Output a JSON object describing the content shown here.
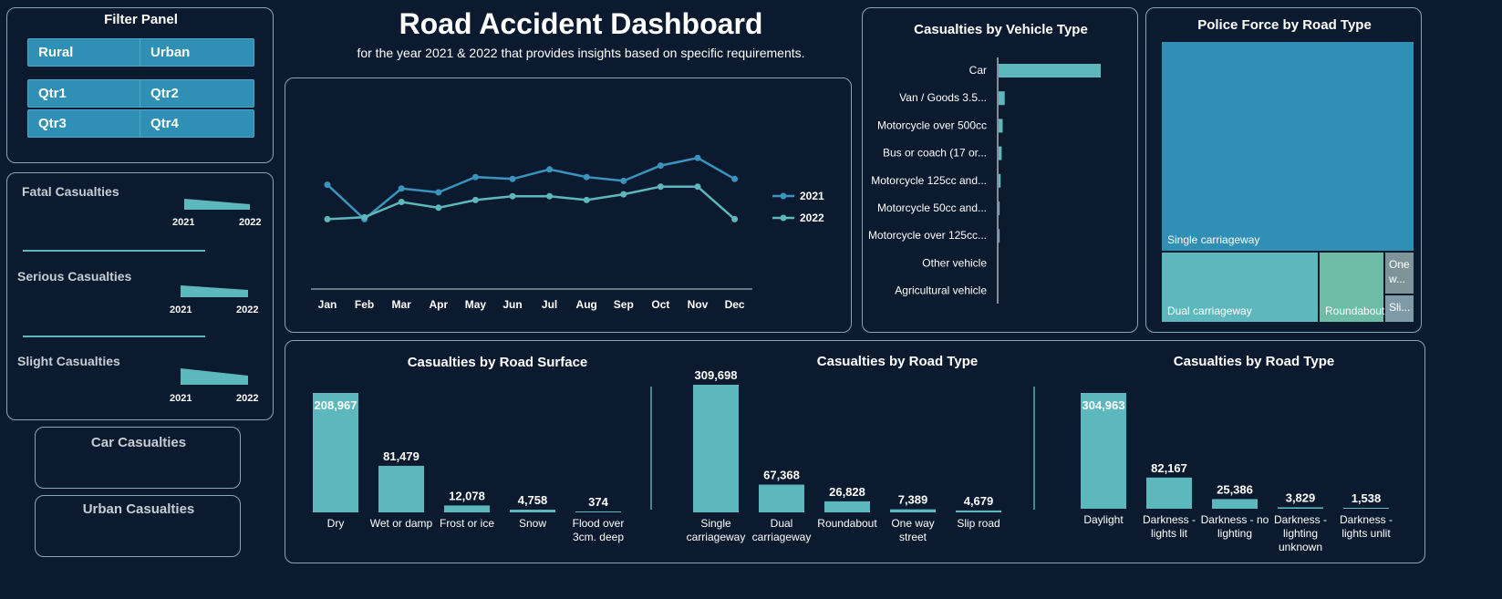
{
  "header": {
    "title": "Road Accident Dashboard",
    "subtitle": "for the year 2021 & 2022 that provides insights based on specific requirements."
  },
  "filter_panel": {
    "title": "Filter Panel",
    "area_buttons": [
      "Rural",
      "Urban"
    ],
    "quarter_buttons": [
      "Qtr1",
      "Qtr2",
      "Qtr3",
      "Qtr4"
    ]
  },
  "kpis": [
    {
      "label": "Fatal Casualties",
      "years": [
        "2021",
        "2022"
      ]
    },
    {
      "label": "Serious Casualties",
      "years": [
        "2021",
        "2022"
      ]
    },
    {
      "label": "Slight Casualties",
      "years": [
        "2021",
        "2022"
      ]
    }
  ],
  "cards": {
    "car": "Car Casualties",
    "urban": "Urban Casualties"
  },
  "colors": {
    "background": "#0b1a2e",
    "accent_teal": "#5cb8bc",
    "accent_blue": "#3a94bd",
    "slicer_blue": "#2f8fb5",
    "treemap_green": "#6dbca3",
    "treemap_grey": "#7f9498"
  },
  "chart_data": [
    {
      "type": "line",
      "id": "monthly_trend",
      "title": "",
      "categories": [
        "Jan",
        "Feb",
        "Mar",
        "Apr",
        "May",
        "Jun",
        "Jul",
        "Aug",
        "Sep",
        "Oct",
        "Nov",
        "Dec"
      ],
      "series": [
        {
          "name": "2021",
          "color": "#3a94bd",
          "values": [
            54,
            36,
            52,
            50,
            58,
            57,
            62,
            58,
            56,
            64,
            68,
            57
          ]
        },
        {
          "name": "2022",
          "color": "#5cb8bc",
          "values": [
            36,
            37,
            45,
            42,
            46,
            48,
            48,
            46,
            49,
            53,
            53,
            36
          ]
        }
      ],
      "ylim": [
        0,
        100
      ],
      "legend": "right"
    },
    {
      "type": "bar",
      "orientation": "horizontal",
      "id": "vehicle_type",
      "title": "Casualties by Vehicle Type",
      "categories": [
        "Car",
        "Van / Goods 3.5...",
        "Motorcycle over 500cc",
        "Bus or coach (17 or...",
        "Motorcycle 125cc and...",
        "Motorcycle 50cc and...",
        "Motorcycle over 125cc...",
        "Other vehicle",
        "Agricultural vehicle"
      ],
      "values": [
        100,
        6,
        4,
        3,
        2,
        1,
        1,
        0,
        0
      ],
      "color": "#5cb8bc"
    },
    {
      "type": "treemap",
      "id": "police_force_road_type",
      "title": "Police Force by Road Type",
      "items": [
        {
          "label": "Single carriageway",
          "value": 309698,
          "color": "#2f8fb5"
        },
        {
          "label": "Dual carriageway",
          "value": 67368,
          "color": "#5cb8bc"
        },
        {
          "label": "Roundabout",
          "value": 26828,
          "color": "#6dbca3"
        },
        {
          "label": "One w...",
          "value": 7389,
          "color": "#7f9498"
        },
        {
          "label": "Sli...",
          "value": 4679,
          "color": "#7f9ba8"
        }
      ]
    },
    {
      "type": "bar",
      "id": "road_surface",
      "title": "Casualties by Road Surface",
      "categories": [
        [
          "Dry"
        ],
        [
          "Wet or damp"
        ],
        [
          "Frost or ice"
        ],
        [
          "Snow"
        ],
        [
          "Flood over",
          "3cm. deep"
        ]
      ],
      "values": [
        208967,
        81479,
        12078,
        4758,
        374
      ],
      "labels": [
        "208,967",
        "81,479",
        "12,078",
        "4,758",
        "374"
      ]
    },
    {
      "type": "bar",
      "id": "road_type",
      "title": "Casualties by Road Type",
      "categories": [
        [
          "Single",
          "carriageway"
        ],
        [
          "Dual",
          "carriageway"
        ],
        [
          "Roundabout"
        ],
        [
          "One way",
          "street"
        ],
        [
          "Slip road"
        ]
      ],
      "values": [
        309698,
        67368,
        26828,
        7389,
        4679
      ],
      "labels": [
        "309,698",
        "67,368",
        "26,828",
        "7,389",
        "4,679"
      ]
    },
    {
      "type": "bar",
      "id": "light_condition",
      "title": "Casualties by Road Type",
      "categories": [
        [
          "Daylight"
        ],
        [
          "Darkness -",
          "lights lit"
        ],
        [
          "Darkness - no",
          "lighting"
        ],
        [
          "Darkness -",
          "lighting",
          "unknown"
        ],
        [
          "Darkness -",
          "lights unlit"
        ]
      ],
      "values": [
        304963,
        82167,
        25386,
        3829,
        1538
      ],
      "labels": [
        "304,963",
        "82,167",
        "25,386",
        "3,829",
        "1,538"
      ]
    }
  ]
}
